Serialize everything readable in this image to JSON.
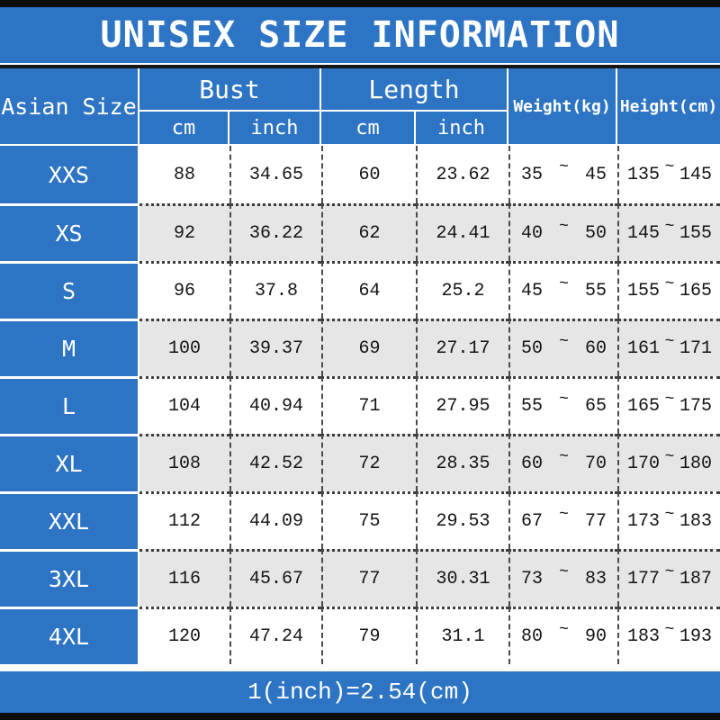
{
  "title": "UNISEX SIZE INFORMATION",
  "footer_note": "1(inch)=2.54(cm)",
  "symbols": {
    "range_tilde": "~"
  },
  "colors": {
    "accent_blue": "#2d75c4",
    "row_alt_gray": "#e6e6e6",
    "frame_black": "#0d0d0d",
    "text_white": "#ffffff",
    "text_dark": "#141414"
  },
  "table": {
    "size_column_header": "Asian Size",
    "groups": {
      "bust": "Bust",
      "length": "Length",
      "weight": "Weight(kg)",
      "height": "Height(cm)"
    },
    "units": {
      "bust_cm": "cm",
      "bust_inch": "inch",
      "length_cm": "cm",
      "length_inch": "inch"
    }
  },
  "chart_data": {
    "type": "table",
    "title": "UNISEX SIZE INFORMATION",
    "columns": [
      "Asian Size",
      "Bust cm",
      "Bust inch",
      "Length cm",
      "Length inch",
      "Weight(kg)",
      "Height(cm)"
    ],
    "rows": [
      {
        "size": "XXS",
        "bust_cm": "88",
        "bust_inch": "34.65",
        "length_cm": "60",
        "length_inch": "23.62",
        "weight_min": "35",
        "weight_max": "45",
        "height_min": "135",
        "height_max": "145"
      },
      {
        "size": "XS",
        "bust_cm": "92",
        "bust_inch": "36.22",
        "length_cm": "62",
        "length_inch": "24.41",
        "weight_min": "40",
        "weight_max": "50",
        "height_min": "145",
        "height_max": "155"
      },
      {
        "size": "S",
        "bust_cm": "96",
        "bust_inch": "37.8",
        "length_cm": "64",
        "length_inch": "25.2",
        "weight_min": "45",
        "weight_max": "55",
        "height_min": "155",
        "height_max": "165"
      },
      {
        "size": "M",
        "bust_cm": "100",
        "bust_inch": "39.37",
        "length_cm": "69",
        "length_inch": "27.17",
        "weight_min": "50",
        "weight_max": "60",
        "height_min": "161",
        "height_max": "171"
      },
      {
        "size": "L",
        "bust_cm": "104",
        "bust_inch": "40.94",
        "length_cm": "71",
        "length_inch": "27.95",
        "weight_min": "55",
        "weight_max": "65",
        "height_min": "165",
        "height_max": "175"
      },
      {
        "size": "XL",
        "bust_cm": "108",
        "bust_inch": "42.52",
        "length_cm": "72",
        "length_inch": "28.35",
        "weight_min": "60",
        "weight_max": "70",
        "height_min": "170",
        "height_max": "180"
      },
      {
        "size": "XXL",
        "bust_cm": "112",
        "bust_inch": "44.09",
        "length_cm": "75",
        "length_inch": "29.53",
        "weight_min": "67",
        "weight_max": "77",
        "height_min": "173",
        "height_max": "183"
      },
      {
        "size": "3XL",
        "bust_cm": "116",
        "bust_inch": "45.67",
        "length_cm": "77",
        "length_inch": "30.31",
        "weight_min": "73",
        "weight_max": "83",
        "height_min": "177",
        "height_max": "187"
      },
      {
        "size": "4XL",
        "bust_cm": "120",
        "bust_inch": "47.24",
        "length_cm": "79",
        "length_inch": "31.1",
        "weight_min": "80",
        "weight_max": "90",
        "height_min": "183",
        "height_max": "193"
      }
    ],
    "note": "1(inch)=2.54(cm)"
  }
}
